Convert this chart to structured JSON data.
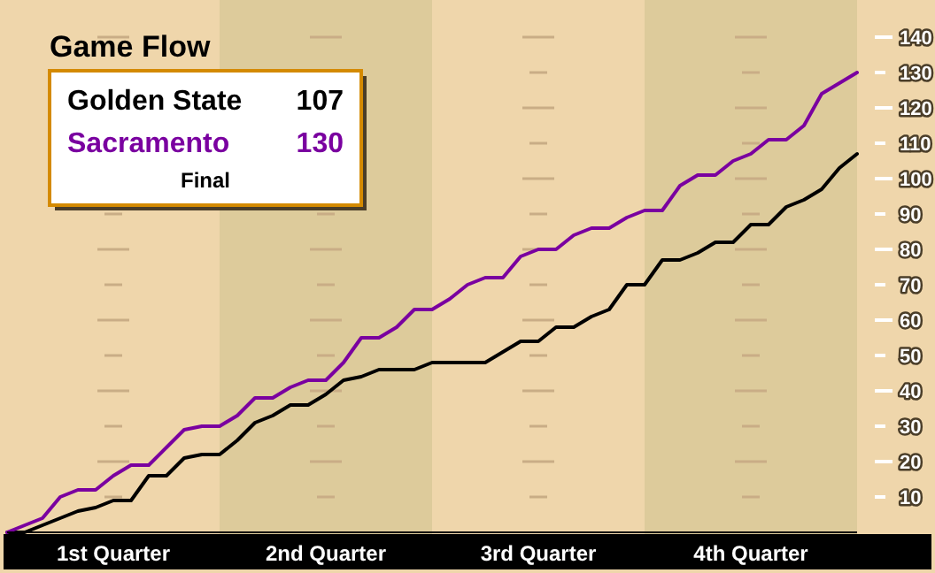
{
  "chart_data": {
    "type": "line",
    "title": "Game Flow",
    "categories": [
      null,
      null,
      null,
      null,
      null,
      null,
      null,
      null,
      null,
      null,
      null,
      null,
      null,
      null,
      null,
      null,
      null,
      null,
      null,
      null,
      null,
      null,
      null,
      null,
      null,
      null,
      null,
      null,
      null,
      null,
      null,
      null,
      null,
      null,
      null,
      null,
      null,
      null,
      null,
      null,
      null,
      null,
      null,
      null,
      null,
      null,
      null,
      null,
      null
    ],
    "ylim": [
      0,
      150
    ],
    "yticks": [
      10,
      20,
      30,
      40,
      50,
      60,
      70,
      80,
      90,
      100,
      110,
      120,
      130,
      140
    ],
    "grid": "y",
    "marker": "none",
    "line_style": "solid",
    "annotations": [
      "107",
      "130",
      "Final",
      "1st Quarter",
      "2nd Quarter",
      "3rd Quarter",
      "4th Quarter"
    ],
    "series": [
      {
        "name": "Golden State",
        "color": "#000000",
        "values": [
          0,
          0,
          2,
          4,
          6,
          7,
          9,
          9,
          16,
          16,
          21,
          22,
          22,
          26,
          31,
          33,
          36,
          36,
          39,
          43,
          44,
          46,
          46,
          46,
          48,
          48,
          48,
          48,
          51,
          54,
          54,
          58,
          58,
          61,
          63,
          70,
          70,
          77,
          77,
          79,
          82,
          82,
          87,
          87,
          92,
          94,
          97,
          103,
          107
        ]
      },
      {
        "name": "Sacramento",
        "color": "#7a00a0",
        "values": [
          0,
          2,
          4,
          10,
          12,
          12,
          16,
          19,
          19,
          24,
          29,
          30,
          30,
          33,
          38,
          38,
          41,
          43,
          43,
          48,
          55,
          55,
          58,
          63,
          63,
          66,
          70,
          72,
          72,
          78,
          80,
          80,
          84,
          86,
          86,
          89,
          91,
          91,
          98,
          101,
          101,
          105,
          107,
          111,
          111,
          115,
          124,
          127,
          130
        ]
      }
    ]
  }
}
